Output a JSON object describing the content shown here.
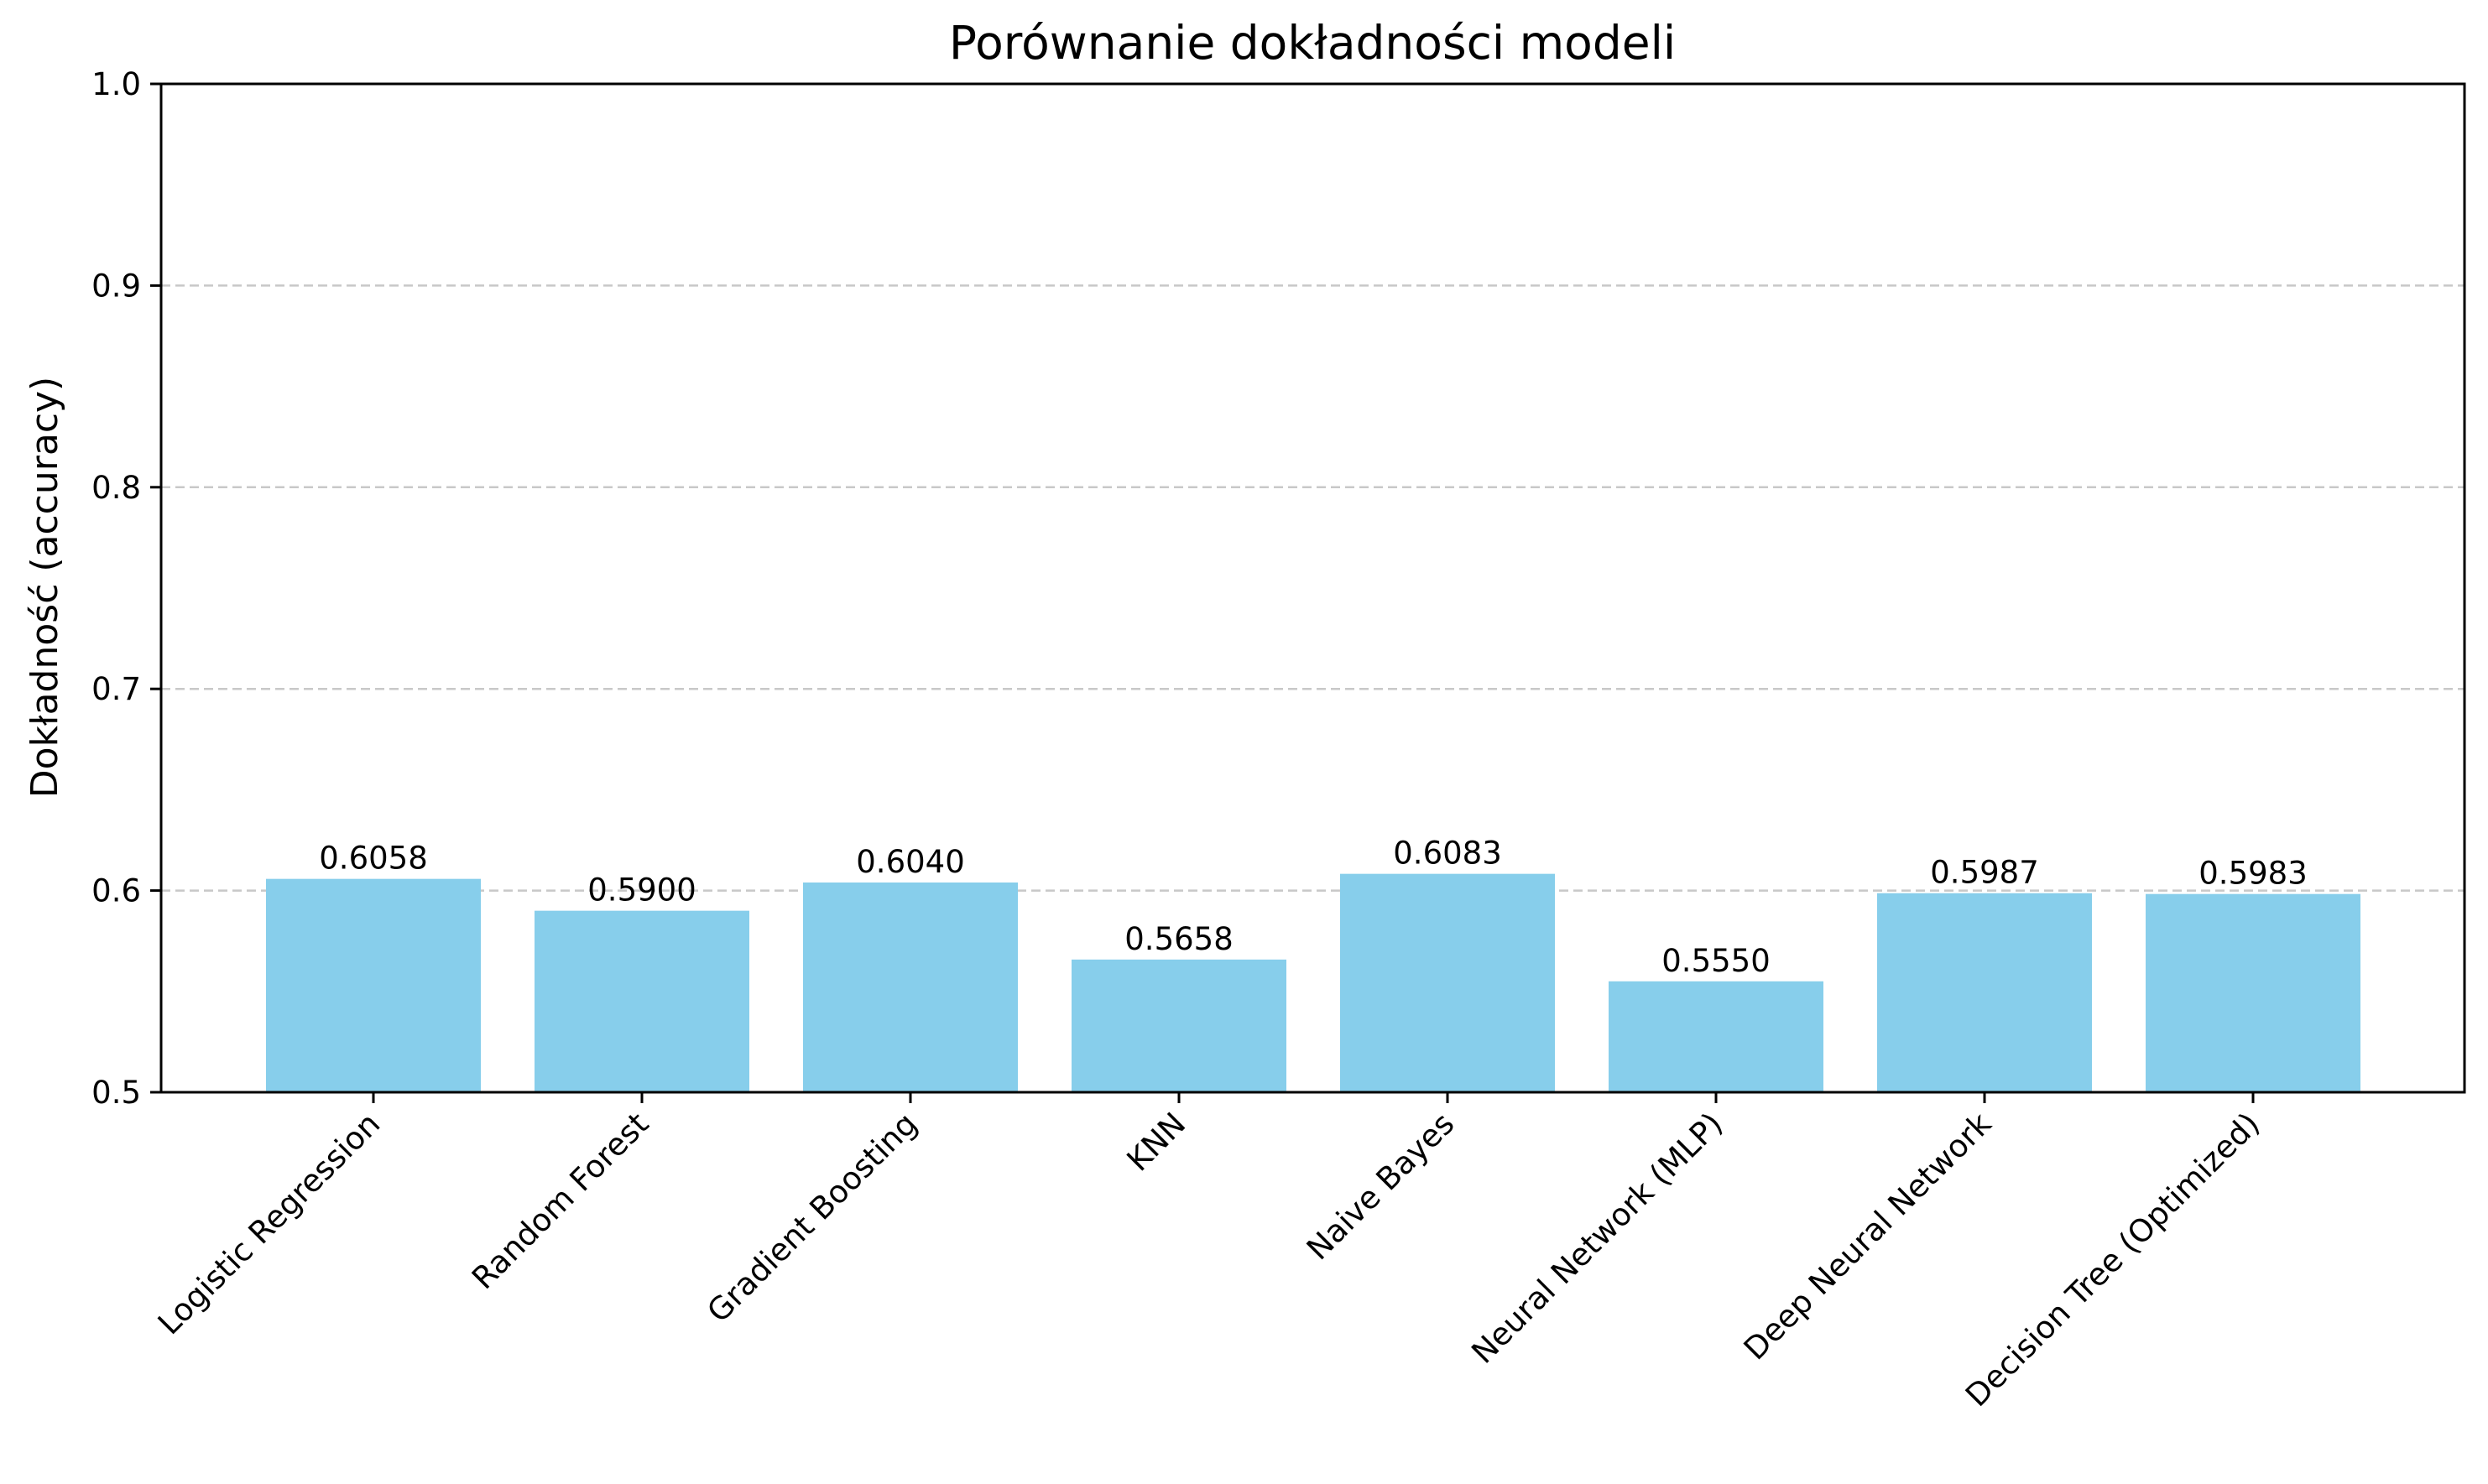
{
  "chart_data": {
    "type": "bar",
    "title": "Porównanie dokładności modeli",
    "xlabel": "",
    "ylabel": "Dokładność (accuracy)",
    "ylim": [
      0.5,
      1.0
    ],
    "yticks": [
      "0.5",
      "0.6",
      "0.7",
      "0.8",
      "0.9",
      "1.0"
    ],
    "categories": [
      "Logistic Regression",
      "Random Forest",
      "Gradient Boosting",
      "KNN",
      "Naive Bayes",
      "Neural Network (MLP)",
      "Deep Neural Network",
      "Decision Tree (Optimized)"
    ],
    "values": [
      0.6058,
      0.59,
      0.604,
      0.5658,
      0.6083,
      0.555,
      0.5987,
      0.5983
    ],
    "value_labels": [
      "0.6058",
      "0.5900",
      "0.6040",
      "0.5658",
      "0.6083",
      "0.5550",
      "0.5987",
      "0.5983"
    ],
    "bar_color": "#87ceeb",
    "grid": "y-dashed",
    "grid_color": "#c8c8c8"
  }
}
